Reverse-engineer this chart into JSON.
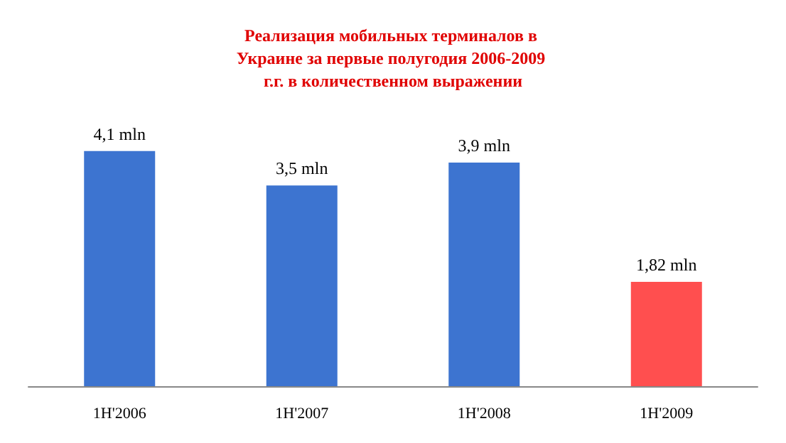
{
  "chart_data": {
    "type": "bar",
    "title": "Реализация мобильных терминалов в Украине за первые полугодия 2006-2009 г.г. в количественном выражении",
    "categories": [
      "1H'2006",
      "1H'2007",
      "1H'2008",
      "1H'2009"
    ],
    "values": [
      4.1,
      3.5,
      3.9,
      1.82
    ],
    "colors": [
      "#3d74d0",
      "#3d74d0",
      "#3d74d0",
      "#ff4f4f"
    ],
    "value_labels": [
      "4,1 mln",
      "3,5 mln",
      "3,9 mln",
      "1,82 mln"
    ]
  }
}
